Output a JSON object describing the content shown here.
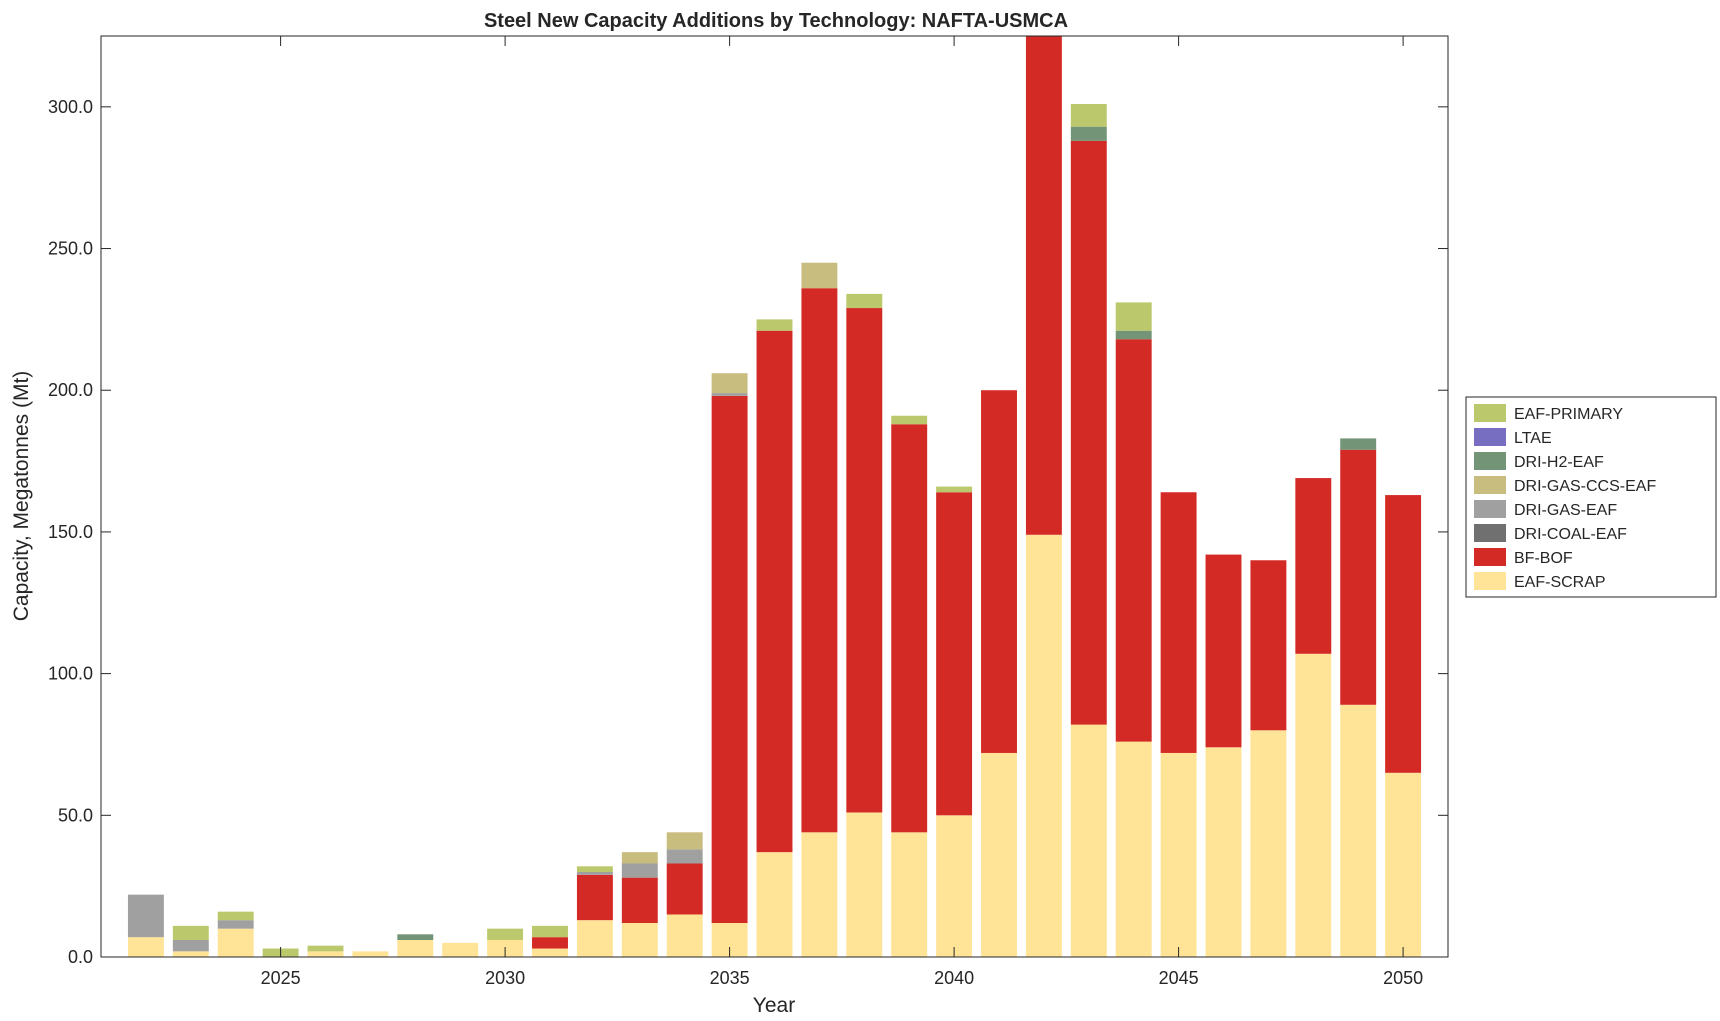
{
  "chart_data": {
    "type": "bar",
    "stacked": true,
    "title": "Steel New Capacity Additions by Technology: NAFTA-USMCA",
    "xlabel": "Year",
    "ylabel": "Capacity, Megatonnes (Mt)",
    "xlim": [
      2021,
      2051
    ],
    "ylim": [
      0,
      325
    ],
    "xticks": [
      2025,
      2030,
      2035,
      2040,
      2045,
      2050
    ],
    "yticks": [
      0,
      50,
      100,
      150,
      200,
      250,
      300
    ],
    "ytick_labels": [
      "0.0",
      "50.0",
      "100.0",
      "150.0",
      "200.0",
      "250.0",
      "300.0"
    ],
    "legend_position": "right",
    "categories": [
      2022,
      2023,
      2024,
      2025,
      2026,
      2027,
      2028,
      2029,
      2030,
      2031,
      2032,
      2033,
      2034,
      2035,
      2036,
      2037,
      2038,
      2039,
      2040,
      2041,
      2042,
      2043,
      2044,
      2045,
      2046,
      2047,
      2048,
      2049,
      2050
    ],
    "series": [
      {
        "name": "EAF-SCRAP",
        "color": "#FFE396",
        "values": [
          7,
          2,
          10,
          0,
          2,
          2,
          6,
          5,
          6,
          3,
          13,
          12,
          15,
          12,
          37,
          44,
          51,
          44,
          50,
          72,
          149,
          82,
          76,
          72,
          74,
          80,
          107,
          89,
          65
        ]
      },
      {
        "name": "BF-BOF",
        "color": "#D42A25",
        "values": [
          0,
          0,
          0,
          0,
          0,
          0,
          0,
          0,
          0,
          4,
          16,
          16,
          18,
          186,
          184,
          192,
          178,
          144,
          114,
          128,
          176,
          206,
          142,
          92,
          68,
          60,
          62,
          90,
          98
        ]
      },
      {
        "name": "DRI-COAL-EAF",
        "color": "#707070",
        "values": [
          0,
          0,
          0,
          0,
          0,
          0,
          0,
          0,
          0,
          0,
          0,
          0,
          0,
          0,
          0,
          0,
          0,
          0,
          0,
          0,
          0,
          0,
          0,
          0,
          0,
          0,
          0,
          0,
          0
        ]
      },
      {
        "name": "DRI-GAS-EAF",
        "color": "#A0A0A0",
        "values": [
          15,
          4,
          3,
          0,
          0,
          0,
          0,
          0,
          0,
          0,
          1,
          5,
          5,
          1,
          0,
          0,
          0,
          0,
          0,
          0,
          0,
          0,
          0,
          0,
          0,
          0,
          0,
          0,
          0
        ]
      },
      {
        "name": "DRI-GAS-CCS-EAF",
        "color": "#C8BC7E",
        "values": [
          0,
          0,
          0,
          0,
          0,
          0,
          0,
          0,
          0,
          0,
          0,
          4,
          6,
          7,
          0,
          9,
          0,
          0,
          0,
          0,
          0,
          0,
          0,
          0,
          0,
          0,
          0,
          0,
          0
        ]
      },
      {
        "name": "DRI-H2-EAF",
        "color": "#739476",
        "values": [
          0,
          0,
          0,
          0,
          0,
          0,
          2,
          0,
          0,
          0,
          0,
          0,
          0,
          0,
          0,
          0,
          0,
          0,
          0,
          0,
          0,
          5,
          3,
          0,
          0,
          0,
          0,
          4,
          0
        ]
      },
      {
        "name": "LTAE",
        "color": "#776EC1",
        "values": [
          0,
          0,
          0,
          0,
          0,
          0,
          0,
          0,
          0,
          0,
          0,
          0,
          0,
          0,
          0,
          0,
          0,
          0,
          0,
          0,
          0,
          0,
          0,
          0,
          0,
          0,
          0,
          0,
          0
        ]
      },
      {
        "name": "EAF-PRIMARY",
        "color": "#BCC86C",
        "values": [
          0,
          5,
          3,
          3,
          2,
          0,
          0,
          0,
          4,
          4,
          2,
          0,
          0,
          0,
          4,
          0,
          5,
          3,
          2,
          0,
          0,
          8,
          10,
          0,
          0,
          0,
          0,
          0,
          0
        ]
      }
    ]
  }
}
